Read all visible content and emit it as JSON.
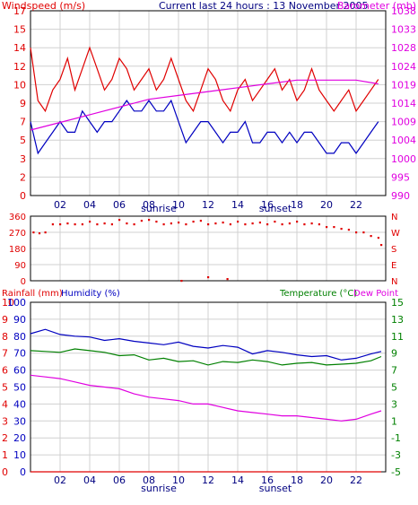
{
  "header": {
    "title": "Current last 24 hours : 13 November 2005",
    "left_label": "Windspeed (m/s)",
    "right_label": "Barometer (mb)"
  },
  "markers": {
    "sunrise": "sunrise",
    "sunset": "sunset"
  },
  "colors": {
    "red": "#e00000",
    "magenta": "#e000e0",
    "blue": "#0000c0",
    "green": "#008000",
    "grid": "#d0d0d0"
  },
  "chart_data": [
    {
      "id": "wind_baro",
      "type": "line",
      "title": "Current last 24 hours : 13 November 2005",
      "xlabel": "",
      "x_ticks": [
        "02",
        "04",
        "06",
        "08",
        "10",
        "12",
        "14",
        "16",
        "18",
        "20",
        "22"
      ],
      "ylabel_left": "Windspeed (m/s)",
      "ylabel_right": "Barometer (mb)",
      "left_ticks": [
        "17",
        "15",
        "14",
        "12",
        "10",
        "9",
        "7",
        "5",
        "3",
        "2",
        "0"
      ],
      "right_ticks": [
        "1038",
        "1033",
        "1028",
        "1024",
        "1019",
        "1014",
        "1009",
        "1004",
        "1000",
        "995",
        "990"
      ],
      "ylim_left": [
        0,
        17.5
      ],
      "ylim_right": [
        990,
        1038
      ],
      "x_range": [
        0,
        24
      ],
      "sunrise_hour": 7.6,
      "sunset_hour": 16.2,
      "series": [
        {
          "color": "red",
          "axis": "left",
          "x": [
            0,
            0.5,
            1,
            1.5,
            2,
            2.5,
            3,
            3.5,
            4,
            4.5,
            5,
            5.5,
            6,
            6.5,
            7,
            7.5,
            8,
            8.5,
            9,
            9.5,
            10,
            10.5,
            11,
            11.5,
            12,
            12.5,
            13,
            13.5,
            14,
            14.5,
            15,
            15.5,
            16,
            16.5,
            17,
            17.5,
            18,
            18.5,
            19,
            19.5,
            20,
            20.5,
            21,
            21.5,
            22,
            22.5,
            23,
            23.5
          ],
          "y": [
            14,
            9,
            8,
            10,
            11,
            13,
            10,
            12,
            14,
            12,
            10,
            11,
            13,
            12,
            10,
            11,
            12,
            10,
            11,
            13,
            11,
            9,
            8,
            10,
            12,
            11,
            9,
            8,
            10,
            11,
            9,
            10,
            11,
            12,
            10,
            11,
            9,
            10,
            12,
            10,
            9,
            8,
            9,
            10,
            8,
            9,
            10,
            11
          ]
        },
        {
          "color": "blue",
          "axis": "left",
          "x": [
            0,
            0.5,
            1,
            1.5,
            2,
            2.5,
            3,
            3.5,
            4,
            4.5,
            5,
            5.5,
            6,
            6.5,
            7,
            7.5,
            8,
            8.5,
            9,
            9.5,
            10,
            10.5,
            11,
            11.5,
            12,
            12.5,
            13,
            13.5,
            14,
            14.5,
            15,
            15.5,
            16,
            16.5,
            17,
            17.5,
            18,
            18.5,
            19,
            19.5,
            20,
            20.5,
            21,
            21.5,
            22,
            22.5,
            23,
            23.5
          ],
          "y": [
            7,
            4,
            5,
            6,
            7,
            6,
            6,
            8,
            7,
            6,
            7,
            7,
            8,
            9,
            8,
            8,
            9,
            8,
            8,
            9,
            7,
            5,
            6,
            7,
            7,
            6,
            5,
            6,
            6,
            7,
            5,
            5,
            6,
            6,
            5,
            6,
            5,
            6,
            6,
            5,
            4,
            4,
            5,
            5,
            4,
            5,
            6,
            7
          ]
        },
        {
          "color": "magenta",
          "axis": "right",
          "x": [
            0,
            2,
            4,
            6,
            8,
            10,
            12,
            14,
            16,
            18,
            20,
            22,
            23.5
          ],
          "y": [
            1007,
            1009,
            1011,
            1013,
            1015,
            1016,
            1017,
            1018,
            1019,
            1020,
            1020,
            1020,
            1019
          ]
        }
      ]
    },
    {
      "id": "wind_dir",
      "type": "scatter",
      "xlabel": "",
      "x_ticks": [],
      "left_ticks": [
        "360",
        "270",
        "180",
        "90",
        "0"
      ],
      "right_ticks": [
        "N",
        "W",
        "S",
        "E",
        "N"
      ],
      "ylim": [
        0,
        360
      ],
      "x_range": [
        0,
        24
      ],
      "points_x": [
        0.2,
        0.6,
        1,
        1.5,
        2,
        2.5,
        3,
        3.5,
        4,
        4.5,
        5,
        5.5,
        6,
        6.5,
        7,
        7.5,
        8,
        8.5,
        9,
        9.5,
        10,
        10.5,
        11,
        11.5,
        12,
        12.5,
        13,
        13.5,
        14,
        14.5,
        15,
        15.5,
        16,
        16.5,
        17,
        17.5,
        18,
        18.5,
        19,
        19.5,
        20,
        20.5,
        21,
        21.5,
        22,
        22.5,
        23,
        23.5,
        10.2,
        12,
        13.3,
        23.7
      ],
      "points_y": [
        270,
        265,
        270,
        315,
        315,
        320,
        315,
        315,
        330,
        315,
        320,
        315,
        340,
        320,
        315,
        335,
        340,
        330,
        315,
        320,
        325,
        315,
        330,
        335,
        315,
        320,
        325,
        315,
        330,
        315,
        320,
        325,
        315,
        330,
        315,
        320,
        330,
        315,
        320,
        315,
        300,
        300,
        290,
        285,
        270,
        270,
        250,
        240,
        0,
        20,
        10,
        200
      ]
    },
    {
      "id": "rain_temp",
      "type": "line",
      "xlabel": "",
      "x_ticks": [
        "02",
        "04",
        "06",
        "08",
        "10",
        "12",
        "14",
        "16",
        "18",
        "20",
        "22"
      ],
      "ylabel_left1": "Rainfall (mm)",
      "ylabel_left2": "Humidity (%)",
      "ylabel_right1": "Temperature (°C)",
      "ylabel_right2": "Dew Point",
      "rain_ticks": [
        "10",
        "9",
        "8",
        "7",
        "6",
        "5",
        "4",
        "3",
        "2",
        "1",
        "0"
      ],
      "humidity_ticks": [
        "100",
        "90",
        "80",
        "70",
        "60",
        "50",
        "40",
        "30",
        "20",
        "10",
        "0"
      ],
      "temp_ticks": [
        "15",
        "13",
        "11",
        "9",
        "7",
        "5",
        "3",
        "1",
        "-1",
        "-3",
        "-5"
      ],
      "ylim_humidity": [
        0,
        100
      ],
      "ylim_temp": [
        -5,
        15
      ],
      "x_range": [
        0,
        24
      ],
      "series": [
        {
          "color": "blue",
          "axis": "temp",
          "x": [
            0,
            1,
            2,
            3,
            4,
            5,
            6,
            7,
            8,
            9,
            10,
            11,
            12,
            13,
            14,
            15,
            16,
            17,
            18,
            19,
            20,
            21,
            22,
            23,
            23.7
          ],
          "y": [
            11.3,
            11.8,
            11.2,
            11.0,
            10.9,
            10.5,
            10.7,
            10.4,
            10.2,
            10.0,
            10.3,
            9.8,
            9.6,
            9.9,
            9.7,
            8.9,
            9.3,
            9.1,
            8.8,
            8.6,
            8.7,
            8.2,
            8.4,
            8.9,
            9.2
          ]
        },
        {
          "color": "green",
          "axis": "temp",
          "x": [
            0,
            1,
            2,
            3,
            4,
            5,
            6,
            7,
            8,
            9,
            10,
            11,
            12,
            13,
            14,
            15,
            16,
            17,
            18,
            19,
            20,
            21,
            22,
            23,
            23.7
          ],
          "y": [
            9.3,
            9.2,
            9.1,
            9.5,
            9.3,
            9.1,
            8.7,
            8.8,
            8.2,
            8.4,
            8.0,
            8.1,
            7.6,
            8.0,
            7.9,
            8.2,
            8.0,
            7.6,
            7.8,
            7.9,
            7.6,
            7.7,
            7.8,
            8.1,
            8.6
          ]
        },
        {
          "color": "magenta",
          "axis": "humidity",
          "x": [
            0,
            1,
            2,
            3,
            4,
            5,
            6,
            7,
            8,
            9,
            10,
            11,
            12,
            13,
            14,
            15,
            16,
            17,
            18,
            19,
            20,
            21,
            22,
            23,
            23.7
          ],
          "y": [
            57,
            56,
            55,
            53,
            51,
            50,
            49,
            46,
            44,
            43,
            42,
            40,
            40,
            38,
            36,
            35,
            34,
            33,
            33,
            32,
            31,
            30,
            31,
            34,
            36
          ]
        },
        {
          "color": "red",
          "axis": "rain",
          "x": [
            0,
            23.7
          ],
          "y": [
            0,
            0
          ]
        }
      ]
    }
  ]
}
